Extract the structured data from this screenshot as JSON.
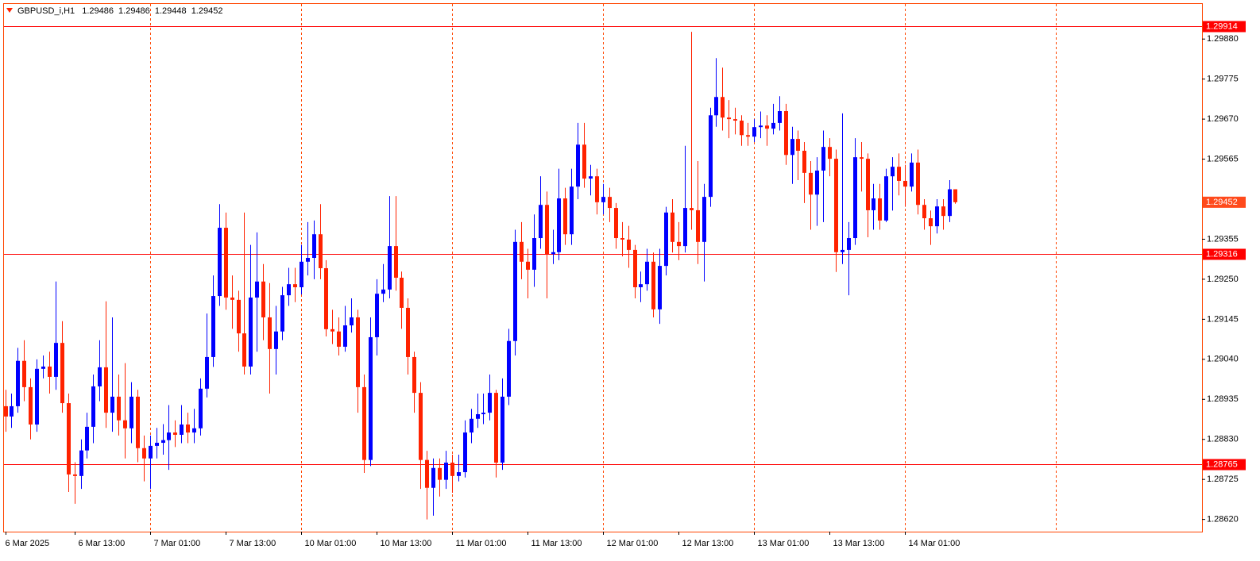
{
  "chart_data": {
    "type": "candlestick",
    "symbol": "GBPUSD_i,H1",
    "categories": [
      "6 Mar 2025",
      null,
      null,
      null,
      null,
      null,
      null,
      null,
      null,
      null,
      null,
      "6 Mar 13:00",
      null,
      null,
      null,
      null,
      null,
      null,
      null,
      null,
      null,
      null,
      null,
      "7 Mar 01:00",
      null,
      null,
      null,
      null,
      null,
      null,
      null,
      null,
      null,
      null,
      null,
      "7 Mar 13:00",
      null,
      null,
      null,
      null,
      null,
      null,
      null,
      null,
      null,
      null,
      null,
      "10 Mar 01:00",
      null,
      null,
      null,
      null,
      null,
      null,
      null,
      null,
      null,
      null,
      null,
      "10 Mar 13:00",
      null,
      null,
      null,
      null,
      null,
      null,
      null,
      null,
      null,
      null,
      null,
      "11 Mar 01:00",
      null,
      null,
      null,
      null,
      null,
      null,
      null,
      null,
      null,
      null,
      null,
      "11 Mar 13:00",
      null,
      null,
      null,
      null,
      null,
      null,
      null,
      null,
      null,
      null,
      null,
      "12 Mar 01:00",
      null,
      null,
      null,
      null,
      null,
      null,
      null,
      null,
      null,
      null,
      null,
      "12 Mar 13:00",
      null,
      null,
      null,
      null,
      null,
      null,
      null,
      null,
      null,
      null,
      null,
      "13 Mar 01:00",
      null,
      null,
      null,
      null,
      null,
      null,
      null,
      null,
      null,
      null,
      null,
      "13 Mar 13:00",
      null,
      null,
      null,
      null,
      null,
      null,
      null,
      null,
      null,
      null,
      null,
      "14 Mar 01:00",
      null,
      null,
      null,
      null,
      null,
      null,
      null,
      null
    ],
    "open": [
      1.28917,
      1.2889,
      1.28917,
      1.29036,
      1.28967,
      1.28869,
      1.29015,
      1.29021,
      1.28994,
      1.29083,
      1.28925,
      1.28738,
      1.28734,
      1.28801,
      1.28863,
      1.28969,
      1.29019,
      1.289,
      1.28942,
      1.2888,
      1.28859,
      1.28942,
      1.28807,
      1.2878,
      1.28813,
      1.28821,
      1.28828,
      1.28848,
      1.28842,
      1.28869,
      1.28848,
      1.28859,
      1.28963,
      1.29046,
      1.29206,
      1.29385,
      1.29202,
      1.29196,
      1.29108,
      1.29021,
      1.29202,
      1.29244,
      1.2915,
      1.29067,
      1.29113,
      1.29208,
      1.29237,
      1.29229,
      1.29296,
      1.29306,
      1.29368,
      1.29279,
      1.29119,
      1.29113,
      1.29073,
      1.29129,
      1.2915,
      1.28967,
      1.28776,
      1.29098,
      1.29212,
      1.29223,
      1.29337,
      1.29254,
      1.29175,
      1.29046,
      1.28952,
      1.28776,
      1.28703,
      1.28755,
      1.28724,
      1.28769,
      1.28734,
      1.28744,
      1.28848,
      1.28884,
      1.28896,
      1.289,
      1.28952,
      1.28769,
      1.28942,
      1.29088,
      1.29348,
      1.29296,
      1.29275,
      1.29358,
      1.29445,
      1.29316,
      1.29321,
      1.29462,
      1.29368,
      1.29493,
      1.29603,
      1.29514,
      1.2952,
      1.29452,
      1.29466,
      1.29437,
      1.29358,
      1.29354,
      1.29327,
      1.29229,
      1.29237,
      1.29296,
      1.29171,
      1.29285,
      1.29425,
      1.29348,
      1.29337,
      1.29437,
      1.29431,
      1.29348,
      1.29466,
      1.2968,
      1.29728,
      1.29674,
      1.2967,
      1.29666,
      1.29628,
      1.29624,
      1.29649,
      1.29653,
      1.29645,
      1.2966,
      1.29691,
      1.29576,
      1.29618,
      1.29587,
      1.29529,
      1.29472,
      1.29535,
      1.29597,
      1.29566,
      1.29321,
      1.29327,
      1.29358,
      1.2957,
      1.29566,
      1.29431,
      1.29462,
      1.29404,
      1.2952,
      1.29545,
      1.29508,
      1.29493,
      1.29556,
      1.29445,
      1.2941,
      1.29389,
      1.29441,
      1.29416,
      1.29486
    ],
    "high": [
      1.2896,
      1.2895,
      1.2907,
      1.2909,
      1.2899,
      1.2904,
      1.2905,
      1.2906,
      1.29244,
      1.2914,
      1.2895,
      1.2877,
      1.2883,
      1.289,
      1.29,
      1.2909,
      1.29192,
      1.2915,
      1.29,
      1.2903,
      1.2898,
      1.2896,
      1.2884,
      1.2884,
      1.2886,
      1.2887,
      1.2892,
      1.2888,
      1.2892,
      1.289,
      1.2891,
      1.2899,
      1.2916,
      1.2926,
      1.29447,
      1.29425,
      1.2926,
      1.2922,
      1.29425,
      1.2934,
      1.29373,
      1.2929,
      1.2924,
      1.2918,
      1.2923,
      1.2928,
      1.2928,
      1.2934,
      1.294,
      1.29404,
      1.29447,
      1.293,
      1.2917,
      1.2915,
      1.2918,
      1.292,
      1.2917,
      1.29,
      1.2915,
      1.2925,
      1.2929,
      1.29468,
      1.29468,
      1.2927,
      1.292,
      1.2906,
      1.2898,
      1.288,
      1.2878,
      1.2878,
      1.288,
      1.2879,
      1.2879,
      1.2888,
      1.2891,
      1.2895,
      1.2895,
      1.29,
      1.2896,
      1.2899,
      1.2912,
      1.2938,
      1.294,
      1.2933,
      1.2942,
      1.2952,
      1.2948,
      1.2938,
      1.2954,
      1.2949,
      1.2954,
      1.2966,
      1.2966,
      1.2955,
      1.2954,
      1.295,
      1.2949,
      1.2945,
      1.294,
      1.2939,
      1.2934,
      1.2927,
      1.2933,
      1.2932,
      1.2933,
      1.2944,
      1.2946,
      1.294,
      1.296,
      1.29899,
      1.2956,
      1.295,
      1.297,
      1.2983,
      1.29805,
      1.2972,
      1.297,
      1.2968,
      1.2966,
      1.2967,
      1.2969,
      1.2968,
      1.2971,
      1.2973,
      1.2971,
      1.2965,
      1.2964,
      1.2961,
      1.2956,
      1.2957,
      1.2964,
      1.2962,
      1.2959,
      1.29685,
      1.294,
      1.2962,
      1.2961,
      1.2958,
      1.295,
      1.295,
      1.2954,
      1.2957,
      1.2958,
      1.2955,
      1.2958,
      1.2959,
      1.2946,
      1.2943,
      1.2946,
      1.2946,
      1.2951,
      1.29486
    ],
    "low": [
      1.2885,
      1.2886,
      1.289,
      1.2893,
      1.2883,
      1.2885,
      1.2899,
      1.2895,
      1.2896,
      1.289,
      1.28692,
      1.28661,
      1.287,
      1.2878,
      1.2882,
      1.2893,
      1.2886,
      1.2885,
      1.2884,
      1.2878,
      1.2882,
      1.2877,
      1.2872,
      1.287,
      1.2878,
      1.2879,
      1.2875,
      1.2881,
      1.2882,
      1.2882,
      1.2882,
      1.2884,
      1.2894,
      1.2902,
      1.2918,
      1.2917,
      1.2912,
      1.2906,
      1.29,
      1.29,
      1.2906,
      1.2909,
      1.2895,
      1.29,
      1.2909,
      1.2918,
      1.2919,
      1.2921,
      1.2926,
      1.2925,
      1.2925,
      1.291,
      1.2908,
      1.2905,
      1.2906,
      1.2911,
      1.289,
      1.28742,
      1.2876,
      1.2905,
      1.2919,
      1.292,
      1.2922,
      1.2912,
      1.29,
      1.289,
      1.287,
      1.2862,
      1.2863,
      1.2868,
      1.287,
      1.2869,
      1.2872,
      1.2873,
      1.2882,
      1.2886,
      1.2887,
      1.2888,
      1.2873,
      1.2875,
      1.2892,
      1.2905,
      1.2925,
      1.292,
      1.2923,
      1.2933,
      1.292,
      1.2929,
      1.293,
      1.2934,
      1.2934,
      1.2946,
      1.2949,
      1.2947,
      1.2942,
      1.2942,
      1.294,
      1.2933,
      1.2931,
      1.2928,
      1.292,
      1.2919,
      1.2922,
      1.2915,
      1.29133,
      1.2926,
      1.2932,
      1.293,
      1.2932,
      1.2938,
      1.2929,
      1.29244,
      1.2944,
      1.2965,
      1.2964,
      1.2962,
      1.2963,
      1.296,
      1.296,
      1.2961,
      1.2962,
      1.296,
      1.2963,
      1.2964,
      1.2955,
      1.295,
      1.2951,
      1.2945,
      1.2938,
      1.2939,
      1.294,
      1.2952,
      1.29269,
      1.2929,
      1.29208,
      1.2934,
      1.2948,
      1.2936,
      1.2938,
      1.2938,
      1.294,
      1.2943,
      1.2947,
      1.2944,
      1.2948,
      1.2942,
      1.2938,
      1.2934,
      1.2937,
      1.2938,
      1.294,
      1.29448
    ],
    "close": [
      1.2889,
      1.28917,
      1.29036,
      1.28967,
      1.28869,
      1.29015,
      1.29021,
      1.28994,
      1.29083,
      1.28925,
      1.28738,
      1.28734,
      1.28801,
      1.28863,
      1.28969,
      1.29019,
      1.289,
      1.28942,
      1.2888,
      1.28859,
      1.28942,
      1.28807,
      1.2878,
      1.28813,
      1.28821,
      1.28828,
      1.28848,
      1.28842,
      1.28869,
      1.28848,
      1.28859,
      1.28963,
      1.29046,
      1.29206,
      1.29385,
      1.29202,
      1.29196,
      1.29108,
      1.29021,
      1.29202,
      1.29244,
      1.2915,
      1.29067,
      1.29113,
      1.29208,
      1.29237,
      1.29229,
      1.29296,
      1.29306,
      1.29368,
      1.29279,
      1.29119,
      1.29113,
      1.29073,
      1.29129,
      1.2915,
      1.28967,
      1.28776,
      1.29098,
      1.29212,
      1.29223,
      1.29337,
      1.29254,
      1.29175,
      1.29046,
      1.28952,
      1.28776,
      1.28703,
      1.28755,
      1.28724,
      1.28769,
      1.28734,
      1.28744,
      1.28848,
      1.28884,
      1.28896,
      1.289,
      1.28952,
      1.28769,
      1.28942,
      1.29088,
      1.29348,
      1.29296,
      1.29275,
      1.29358,
      1.29445,
      1.29316,
      1.29321,
      1.29462,
      1.29368,
      1.29493,
      1.29603,
      1.29514,
      1.2952,
      1.29452,
      1.29466,
      1.29437,
      1.29358,
      1.29354,
      1.29327,
      1.29229,
      1.29237,
      1.29296,
      1.29171,
      1.29285,
      1.29425,
      1.29348,
      1.29337,
      1.29437,
      1.29431,
      1.29348,
      1.29466,
      1.2968,
      1.29728,
      1.29674,
      1.2967,
      1.29666,
      1.29628,
      1.29624,
      1.29649,
      1.29653,
      1.29645,
      1.2966,
      1.29691,
      1.29576,
      1.29618,
      1.29587,
      1.29529,
      1.29472,
      1.29535,
      1.29597,
      1.29566,
      1.29321,
      1.29327,
      1.29358,
      1.2957,
      1.29566,
      1.29431,
      1.29462,
      1.29404,
      1.2952,
      1.29545,
      1.29508,
      1.29493,
      1.29556,
      1.29445,
      1.2941,
      1.29389,
      1.29441,
      1.29416,
      1.29486,
      1.29452
    ],
    "up_color": "#0000ff",
    "down_color": "#ff2200",
    "ylim": [
      1.28588,
      1.29972
    ],
    "yticks": [
      {
        "value": 1.2988,
        "label": "1.29880"
      },
      1.29775,
      {
        "value": 1.2967,
        "label": "1.29670"
      },
      1.29565,
      1.29355,
      {
        "value": 1.2925,
        "label": "1.29250"
      },
      1.29145,
      {
        "value": 1.2904,
        "label": "1.29040"
      },
      1.28935,
      {
        "value": 1.2883,
        "label": "1.28830"
      },
      1.28725,
      {
        "value": 1.2862,
        "label": "1.28620"
      }
    ],
    "levels": [
      1.29914,
      1.29316,
      1.28765
    ],
    "level_color": "#ff0000",
    "bid": 1.29452,
    "bid_color": "#ff4a1c",
    "grid": true,
    "grid_color": "#ff4500"
  }
}
